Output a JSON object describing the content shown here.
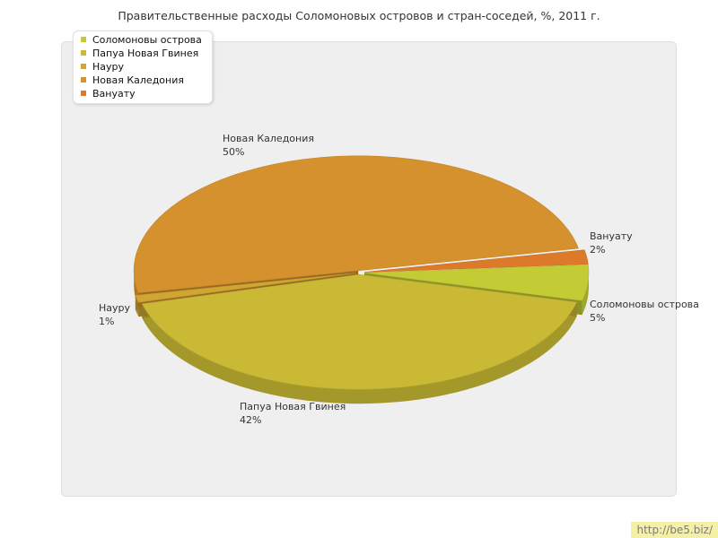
{
  "chart_data": {
    "type": "pie",
    "title": "Правительственные расходы Соломоновых островов и стран-соседей, %, 2011 г.",
    "slices": [
      {
        "name": "Соломоновы острова",
        "value": 5,
        "label": "5%",
        "color": "#c3cc35"
      },
      {
        "name": "Папуа Новая Гвинея",
        "value": 42,
        "label": "42%",
        "color": "#c9b934"
      },
      {
        "name": "Науру",
        "value": 1,
        "label": "1%",
        "color": "#cfa632"
      },
      {
        "name": "Новая Каледония",
        "value": 50,
        "label": "50%",
        "color": "#d4912e"
      },
      {
        "name": "Вануату",
        "value": 2,
        "label": "2%",
        "color": "#dc7a2a"
      }
    ],
    "legend_position": "top-left"
  },
  "watermark": "http://be5.biz/"
}
